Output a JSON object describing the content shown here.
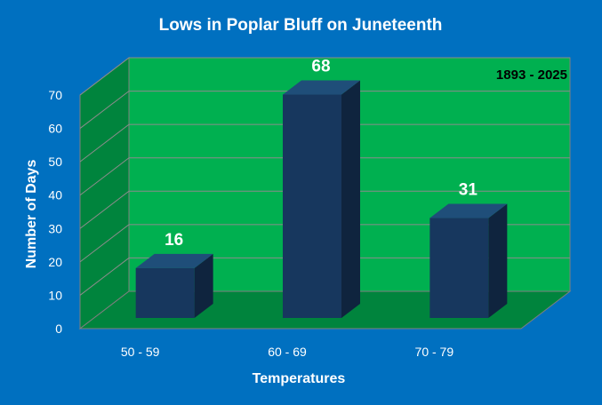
{
  "colors": {
    "background": "#0070c0",
    "back_wall": "#00b050",
    "side_wall": "#00843d",
    "floor": "#00843d",
    "bar_front": "#17375e",
    "bar_top": "#1f4e79",
    "bar_side": "#0f243e",
    "text_white": "#ffffff",
    "text_black": "#000000"
  },
  "chart_data": {
    "type": "bar",
    "title": "Lows in Poplar Bluff on Juneteenth",
    "annotation": "1893 - 2025",
    "xlabel": "Temperatures",
    "ylabel": "Number of Days",
    "categories": [
      "50 - 59",
      "60 - 69",
      "70 - 79"
    ],
    "values": [
      16,
      68,
      31
    ],
    "data_labels": [
      "16",
      "68",
      "31"
    ],
    "ylim": [
      0,
      70
    ],
    "yticks": [
      "0",
      "10",
      "20",
      "30",
      "40",
      "50",
      "60",
      "70"
    ],
    "grid": true,
    "three_d": true,
    "legend": "none"
  }
}
